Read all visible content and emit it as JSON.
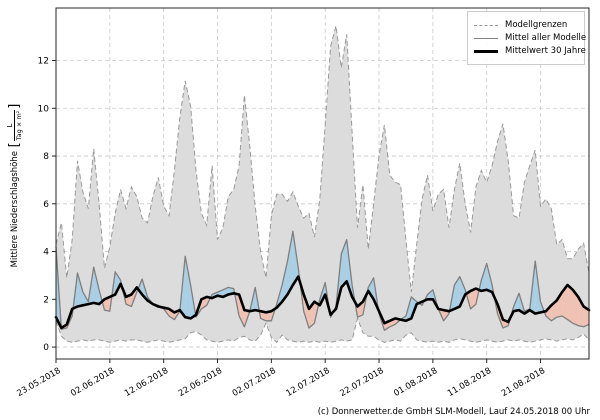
{
  "page": {
    "background": "#ffffff"
  },
  "footer": {
    "text": "(c) Donnerwetter.de GmbH SLM-Modell, Lauf 24.05.2018 00 Uhr"
  },
  "legend": {
    "position": "upper right",
    "entries": [
      {
        "label": "Modellgrenzen",
        "style": "dashed-gray"
      },
      {
        "label": "Mittel aller Modelle",
        "style": "solid-gray"
      },
      {
        "label": "Mittelwert 30 Jahre",
        "style": "solid-black-thick"
      }
    ]
  },
  "chart_data": {
    "type": "line",
    "title": "",
    "ylabel": "Mittlere Niederschlagshöhe",
    "unit_numerator": "L",
    "unit_denominator": "Tag × m²",
    "grid": true,
    "legend_position": "upper right",
    "xlim_days": [
      0,
      99
    ],
    "ylim": [
      -0.5,
      14.2
    ],
    "x_unit": "Tage ab 23.05.2018",
    "xticks": {
      "days": [
        0,
        10,
        20,
        30,
        40,
        50,
        60,
        70,
        80,
        90
      ],
      "labels": [
        "23.05.2018",
        "02.06.2018",
        "12.06.2018",
        "22.06.2018",
        "02.07.2018",
        "12.07.2018",
        "22.07.2018",
        "01.08.2018",
        "11.08.2018",
        "21.08.2018"
      ]
    },
    "yticks": [
      0,
      2,
      4,
      6,
      8,
      10,
      12
    ],
    "fills": {
      "band_color": "#dcdcdc",
      "above_color": "#a9cfe5",
      "below_color": "#f0c2b4"
    },
    "x": [
      0,
      1,
      2,
      3,
      4,
      5,
      6,
      7,
      8,
      9,
      10,
      11,
      12,
      13,
      14,
      15,
      16,
      17,
      18,
      19,
      20,
      21,
      22,
      23,
      24,
      25,
      26,
      27,
      28,
      29,
      30,
      31,
      32,
      33,
      34,
      35,
      36,
      37,
      38,
      39,
      40,
      41,
      42,
      43,
      44,
      45,
      46,
      47,
      48,
      49,
      50,
      51,
      52,
      53,
      54,
      55,
      56,
      57,
      58,
      59,
      60,
      61,
      62,
      63,
      64,
      65,
      66,
      67,
      68,
      69,
      70,
      71,
      72,
      73,
      74,
      75,
      76,
      77,
      78,
      79,
      80,
      81,
      82,
      83,
      84,
      85,
      86,
      87,
      88,
      89,
      90,
      91,
      92,
      93,
      94,
      95,
      96,
      97,
      98,
      99
    ],
    "series": [
      {
        "name": "Modellgrenzen (Obergrenze)",
        "role": "upper_bound",
        "color": "#999999",
        "style": "dashed",
        "values": [
          4.3,
          5.2,
          2.9,
          4.5,
          7.8,
          6.5,
          5.8,
          8.3,
          6.0,
          3.3,
          4.2,
          5.6,
          6.6,
          5.8,
          6.7,
          6.3,
          5.4,
          5.2,
          6.3,
          7.1,
          5.9,
          5.5,
          7.4,
          9.6,
          11.15,
          10.1,
          7.4,
          5.6,
          5.1,
          7.6,
          4.5,
          5.0,
          6.3,
          6.6,
          7.6,
          10.55,
          8.4,
          5.9,
          4.0,
          2.9,
          5.5,
          6.4,
          6.4,
          6.1,
          6.5,
          5.9,
          5.4,
          5.6,
          4.6,
          6.2,
          9.3,
          12.6,
          13.45,
          11.7,
          13.1,
          9.0,
          5.0,
          6.8,
          4.1,
          6.0,
          8.0,
          9.3,
          7.2,
          6.9,
          6.8,
          4.5,
          2.3,
          4.3,
          6.2,
          7.2,
          5.7,
          6.4,
          6.6,
          5.0,
          6.6,
          7.7,
          6.0,
          4.8,
          6.7,
          7.4,
          6.9,
          7.6,
          8.6,
          9.35,
          7.8,
          5.5,
          5.4,
          6.9,
          7.6,
          8.25,
          5.9,
          6.2,
          5.8,
          4.3,
          4.5,
          3.7,
          3.7,
          4.1,
          4.35,
          3.1
        ]
      },
      {
        "name": "Modellgrenzen (Untergrenze)",
        "role": "lower_bound",
        "color": "#999999",
        "style": "dashed",
        "values": [
          1.1,
          0.45,
          0.25,
          0.2,
          0.25,
          0.3,
          0.25,
          0.3,
          0.3,
          0.25,
          0.2,
          0.25,
          0.3,
          0.25,
          0.3,
          0.3,
          0.25,
          0.2,
          0.25,
          0.3,
          0.25,
          0.2,
          0.25,
          0.3,
          0.35,
          0.6,
          0.65,
          0.5,
          0.3,
          0.25,
          0.2,
          0.25,
          0.3,
          0.25,
          0.4,
          0.45,
          0.3,
          0.25,
          0.5,
          1.0,
          0.4,
          0.2,
          0.5,
          0.3,
          0.25,
          0.2,
          0.25,
          0.2,
          0.25,
          0.2,
          0.25,
          0.2,
          0.25,
          0.3,
          0.25,
          0.3,
          1.2,
          0.6,
          0.45,
          0.45,
          0.3,
          0.2,
          0.25,
          0.3,
          0.25,
          0.5,
          0.6,
          0.3,
          0.25,
          0.2,
          0.25,
          0.2,
          0.25,
          0.2,
          0.3,
          0.35,
          0.3,
          0.25,
          0.2,
          0.25,
          0.3,
          0.25,
          0.2,
          0.25,
          0.3,
          0.25,
          0.3,
          0.25,
          0.2,
          0.25,
          0.3,
          0.35,
          0.3,
          0.25,
          0.3,
          0.35,
          0.3,
          0.4,
          0.55,
          0.3
        ]
      },
      {
        "name": "Mittel aller Modelle",
        "role": "model_mean",
        "color": "#7f7f7f",
        "style": "solid",
        "values": [
          4.2,
          0.75,
          0.8,
          1.3,
          3.1,
          2.3,
          1.9,
          3.35,
          2.4,
          1.55,
          1.5,
          3.15,
          2.8,
          1.8,
          1.7,
          2.3,
          2.85,
          2.1,
          1.8,
          1.75,
          1.6,
          1.3,
          1.15,
          1.5,
          3.8,
          2.6,
          1.25,
          1.6,
          1.75,
          2.2,
          2.3,
          2.4,
          2.5,
          2.45,
          1.3,
          0.85,
          1.5,
          2.5,
          1.2,
          1.1,
          1.1,
          1.8,
          2.6,
          3.6,
          4.85,
          3.3,
          1.5,
          0.8,
          1.0,
          2.0,
          2.7,
          1.25,
          1.7,
          3.9,
          4.5,
          2.6,
          1.25,
          1.35,
          2.5,
          2.9,
          1.4,
          0.7,
          0.85,
          0.95,
          1.15,
          1.3,
          2.1,
          1.9,
          1.75,
          2.2,
          2.4,
          1.6,
          1.1,
          1.4,
          2.6,
          2.95,
          2.4,
          1.6,
          1.8,
          2.8,
          3.5,
          2.6,
          1.4,
          0.8,
          0.9,
          1.7,
          2.25,
          1.5,
          1.6,
          3.6,
          1.9,
          1.3,
          1.1,
          1.25,
          1.3,
          1.15,
          1.0,
          0.9,
          0.85,
          0.95
        ]
      },
      {
        "name": "Mittelwert 30 Jahre",
        "role": "climate_mean",
        "color": "#000000",
        "style": "solid-thick",
        "values": [
          1.25,
          0.8,
          0.95,
          1.6,
          1.7,
          1.75,
          1.8,
          1.85,
          1.8,
          2.0,
          2.1,
          2.2,
          2.65,
          2.1,
          2.2,
          2.5,
          2.2,
          1.95,
          1.8,
          1.7,
          1.65,
          1.6,
          1.45,
          1.55,
          1.25,
          1.2,
          1.35,
          2.0,
          2.1,
          2.05,
          2.15,
          2.1,
          2.2,
          2.25,
          2.2,
          1.55,
          1.5,
          1.55,
          1.5,
          1.45,
          1.5,
          1.65,
          1.9,
          2.2,
          2.6,
          2.95,
          2.2,
          1.6,
          1.9,
          1.75,
          2.2,
          1.35,
          1.6,
          2.5,
          2.75,
          2.1,
          1.7,
          1.9,
          2.35,
          2.0,
          1.5,
          1.0,
          1.1,
          1.2,
          1.15,
          1.1,
          1.2,
          1.8,
          1.9,
          2.0,
          2.0,
          1.6,
          1.55,
          1.5,
          1.6,
          1.7,
          2.2,
          2.35,
          2.45,
          2.35,
          2.4,
          2.3,
          1.8,
          1.15,
          1.05,
          1.5,
          1.55,
          1.4,
          1.55,
          1.4,
          1.45,
          1.5,
          1.75,
          1.95,
          2.3,
          2.6,
          2.4,
          2.1,
          1.7,
          1.55
        ]
      }
    ]
  }
}
